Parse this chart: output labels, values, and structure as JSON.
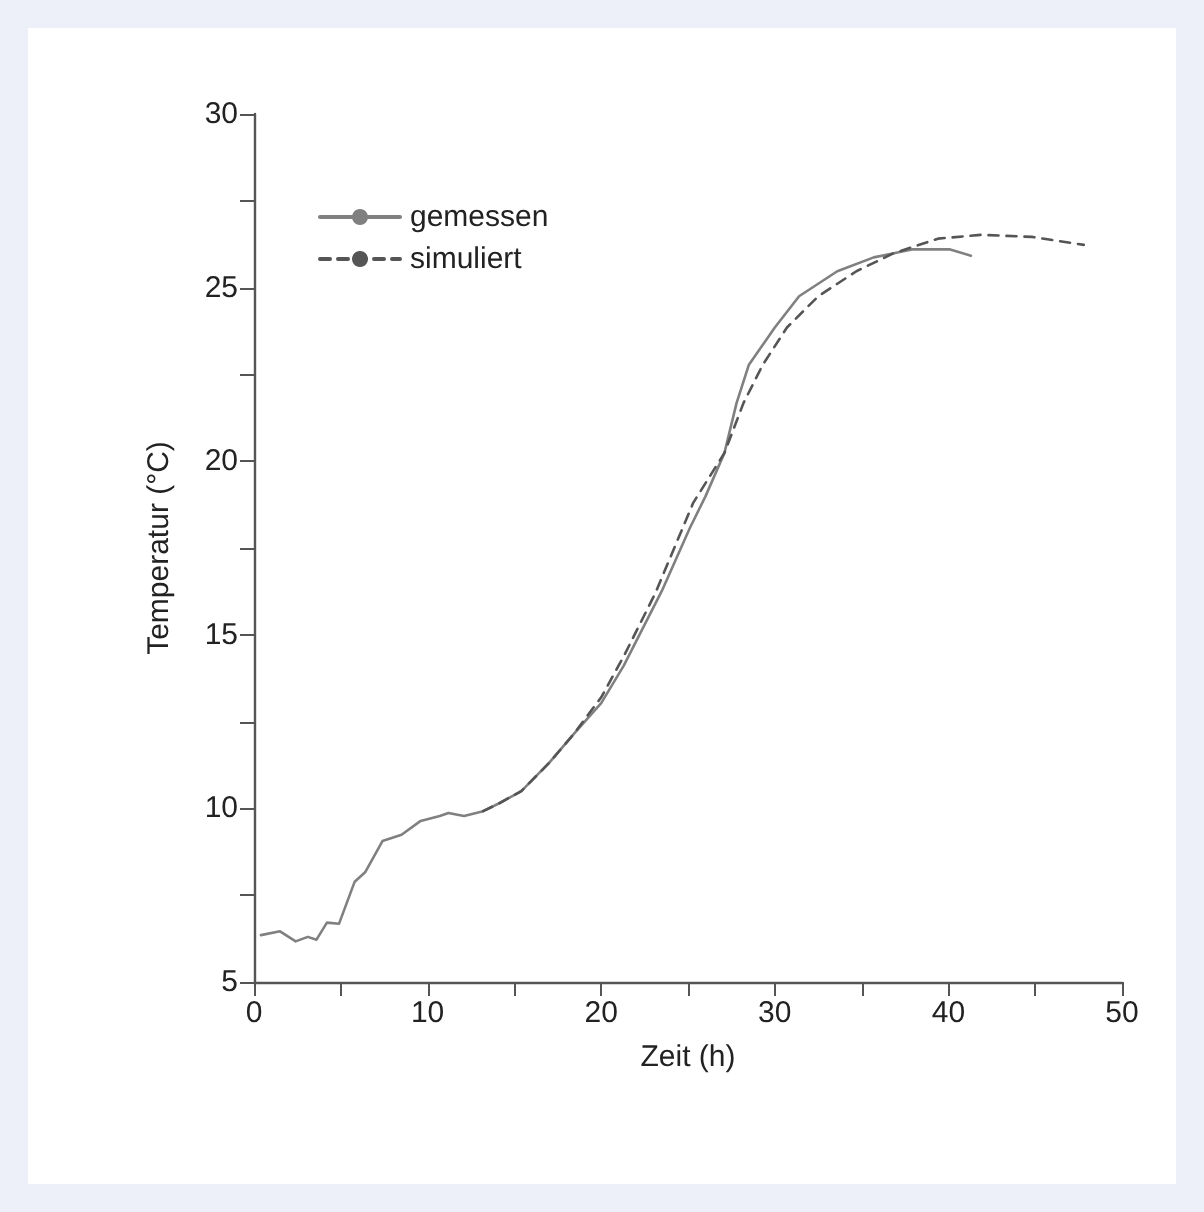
{
  "chart_data": {
    "type": "line",
    "xlabel": "Zeit (h)",
    "ylabel": "Temperatur (°C)",
    "xlim": [
      0,
      50
    ],
    "ylim": [
      5,
      30
    ],
    "xticks": [
      0,
      {
        "value": 5,
        "label": null
      },
      10,
      {
        "value": 15,
        "label": null
      },
      20,
      {
        "value": 25,
        "label": null
      },
      30,
      {
        "value": 35,
        "label": null
      },
      40,
      {
        "value": 45,
        "label": null
      },
      50
    ],
    "yticks": [
      5,
      {
        "value": 7.5,
        "label": null
      },
      10,
      {
        "value": 12.5,
        "label": null
      },
      15,
      {
        "value": 17.5,
        "label": null
      },
      20,
      {
        "value": 22.5,
        "label": null
      },
      25,
      {
        "value": 27.5,
        "label": null
      },
      30
    ],
    "grid": false,
    "legend": "top left",
    "marker": "none",
    "series": [
      {
        "name": "gemessen",
        "color": "#808080",
        "line_style": "solid",
        "x": [
          0.4,
          1.5,
          2.4,
          3.1,
          3.6,
          4.2,
          4.9,
          5.8,
          6.4,
          7.4,
          8.5,
          9.6,
          10.7,
          11.2,
          12.1,
          13.2,
          14.1,
          15.4,
          17.0,
          18.4,
          20.0,
          21.3,
          23.5,
          25.1,
          26.0,
          27.1,
          27.8,
          28.5,
          30.0,
          31.4,
          33.6,
          35.7,
          37.9,
          40.1,
          41.3
        ],
        "values": [
          6.35,
          6.46,
          6.17,
          6.3,
          6.22,
          6.71,
          6.68,
          7.89,
          8.16,
          9.06,
          9.24,
          9.64,
          9.78,
          9.87,
          9.78,
          9.92,
          10.14,
          10.5,
          11.31,
          12.13,
          13.03,
          14.11,
          16.27,
          18.07,
          18.98,
          20.24,
          21.68,
          22.77,
          23.85,
          24.75,
          25.47,
          25.87,
          26.1,
          26.1,
          25.92
        ]
      },
      {
        "name": "simuliert",
        "color": "#555555",
        "line_style": "dashed",
        "x": [
          13.2,
          14.1,
          15.4,
          17.0,
          18.4,
          20.0,
          21.3,
          23.1,
          25.3,
          27.1,
          28.2,
          29.3,
          30.7,
          32.5,
          34.7,
          36.8,
          39.4,
          41.9,
          44.8,
          47.8
        ],
        "values": [
          9.92,
          10.14,
          10.5,
          11.31,
          12.13,
          13.2,
          14.38,
          16.18,
          18.8,
          20.24,
          21.68,
          22.77,
          23.85,
          24.75,
          25.47,
          25.98,
          26.41,
          26.52,
          26.46,
          26.23
        ]
      }
    ]
  }
}
